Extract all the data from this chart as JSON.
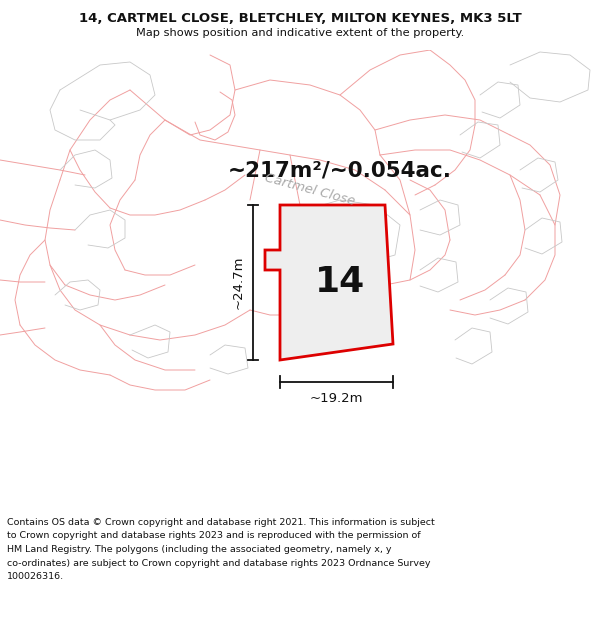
{
  "title_line1": "14, CARTMEL CLOSE, BLETCHLEY, MILTON KEYNES, MK3 5LT",
  "title_line2": "Map shows position and indicative extent of the property.",
  "footer_lines": [
    "Contains OS data © Crown copyright and database right 2021. This information is subject",
    "to Crown copyright and database rights 2023 and is reproduced with the permission of",
    "HM Land Registry. The polygons (including the associated geometry, namely x, y",
    "co-ordinates) are subject to Crown copyright and database rights 2023 Ordnance Survey",
    "100026316."
  ],
  "area_text": "~217m²/~0.054ac.",
  "property_number": "14",
  "dim_width": "~19.2m",
  "dim_height": "~24.7m",
  "road_label": "Cartmel Close",
  "map_bg": "#f5f4f2",
  "parcel_fill": "#ebebeb",
  "parcel_edge": "#f0a0a0",
  "parcel_edge2": "#c8c8c8",
  "property_fill": "#eeeeee",
  "property_edge": "#dd0000",
  "title_bg": "#ffffff",
  "footer_bg": "#ffffff",
  "dim_color": "#111111",
  "label_color": "#111111",
  "road_label_color": "#aaaaaa"
}
